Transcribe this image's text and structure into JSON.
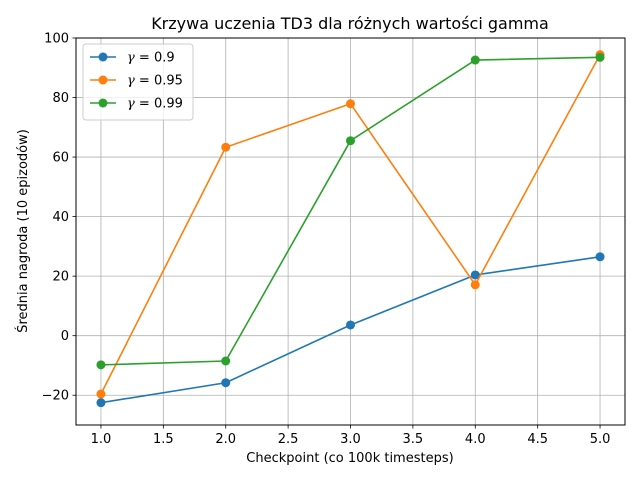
{
  "chart_data": {
    "type": "line",
    "title": "Krzywa uczenia TD3 dla różnych wartości gamma",
    "xlabel": "Checkpoint (co 100k timesteps)",
    "ylabel": "Średnia nagroda (10 epizodów)",
    "xlim": [
      0.8,
      5.2
    ],
    "ylim": [
      -30,
      100
    ],
    "xticks": [
      1.0,
      1.5,
      2.0,
      2.5,
      3.0,
      3.5,
      4.0,
      4.5,
      5.0
    ],
    "xtick_labels": [
      "1.0",
      "1.5",
      "2.0",
      "2.5",
      "3.0",
      "3.5",
      "4.0",
      "4.5",
      "5.0"
    ],
    "yticks": [
      -20,
      0,
      20,
      40,
      60,
      80,
      100
    ],
    "ytick_labels": [
      "−20",
      "0",
      "20",
      "40",
      "60",
      "80",
      "100"
    ],
    "grid": true,
    "legend_position": "top-left",
    "x": [
      1,
      2,
      3,
      4,
      5
    ],
    "series": [
      {
        "name": "γ = 0.9",
        "legend_symbol": "γ",
        "legend_rest": " = 0.9",
        "color": "#1f77b4",
        "values": [
          -22.5,
          -15.8,
          3.6,
          20.4,
          26.5
        ]
      },
      {
        "name": "γ = 0.95",
        "legend_symbol": "γ",
        "legend_rest": " = 0.95",
        "color": "#ff7f0e",
        "values": [
          -19.6,
          63.3,
          77.9,
          17.1,
          94.4
        ]
      },
      {
        "name": "γ = 0.99",
        "legend_symbol": "γ",
        "legend_rest": " = 0.99",
        "color": "#2ca02c",
        "values": [
          -9.8,
          -8.5,
          65.5,
          92.6,
          93.5
        ]
      }
    ]
  }
}
